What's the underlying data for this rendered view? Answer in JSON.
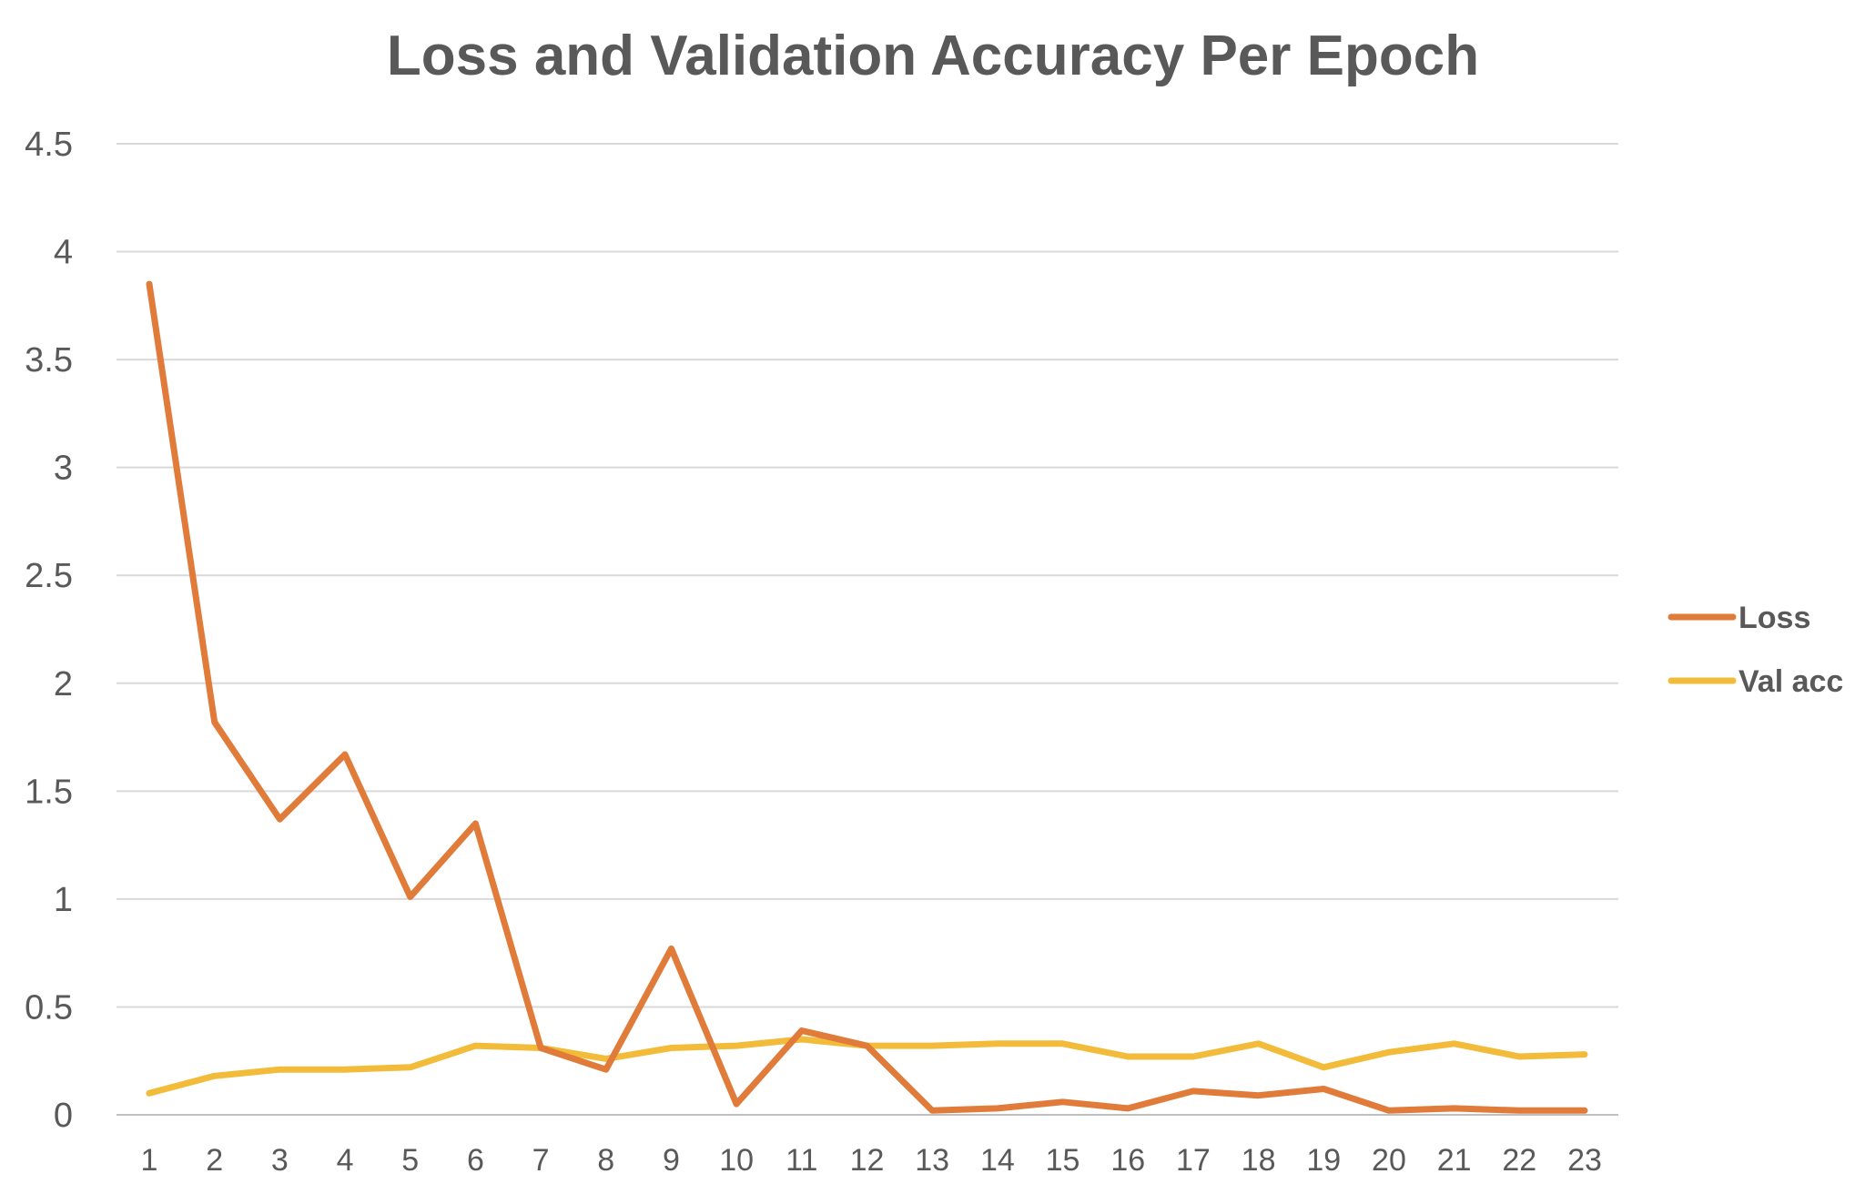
{
  "chart_data": {
    "type": "line",
    "title": "Loss and Validation Accuracy Per Epoch",
    "xlabel": "",
    "ylabel": "",
    "categories": [
      "1",
      "2",
      "3",
      "4",
      "5",
      "6",
      "7",
      "8",
      "9",
      "10",
      "11",
      "12",
      "13",
      "14",
      "15",
      "16",
      "17",
      "18",
      "19",
      "20",
      "21",
      "22",
      "23"
    ],
    "yticks": [
      "0",
      "0.5",
      "1",
      "1.5",
      "2",
      "2.5",
      "3",
      "3.5",
      "4",
      "4.5"
    ],
    "ylim": [
      0,
      4.5
    ],
    "grid": true,
    "legend_position": "right",
    "series": [
      {
        "name": "Loss",
        "color": "#E07B3A",
        "values": [
          3.85,
          1.82,
          1.37,
          1.67,
          1.01,
          1.35,
          0.31,
          0.21,
          0.77,
          0.05,
          0.39,
          0.32,
          0.02,
          0.03,
          0.06,
          0.03,
          0.11,
          0.09,
          0.12,
          0.02,
          0.03,
          0.02,
          0.02
        ]
      },
      {
        "name": "Val acc",
        "color": "#F2BC3A",
        "values": [
          0.1,
          0.18,
          0.21,
          0.21,
          0.22,
          0.32,
          0.31,
          0.26,
          0.31,
          0.32,
          0.35,
          0.32,
          0.32,
          0.33,
          0.33,
          0.27,
          0.27,
          0.33,
          0.22,
          0.29,
          0.33,
          0.27,
          0.28
        ]
      }
    ]
  }
}
